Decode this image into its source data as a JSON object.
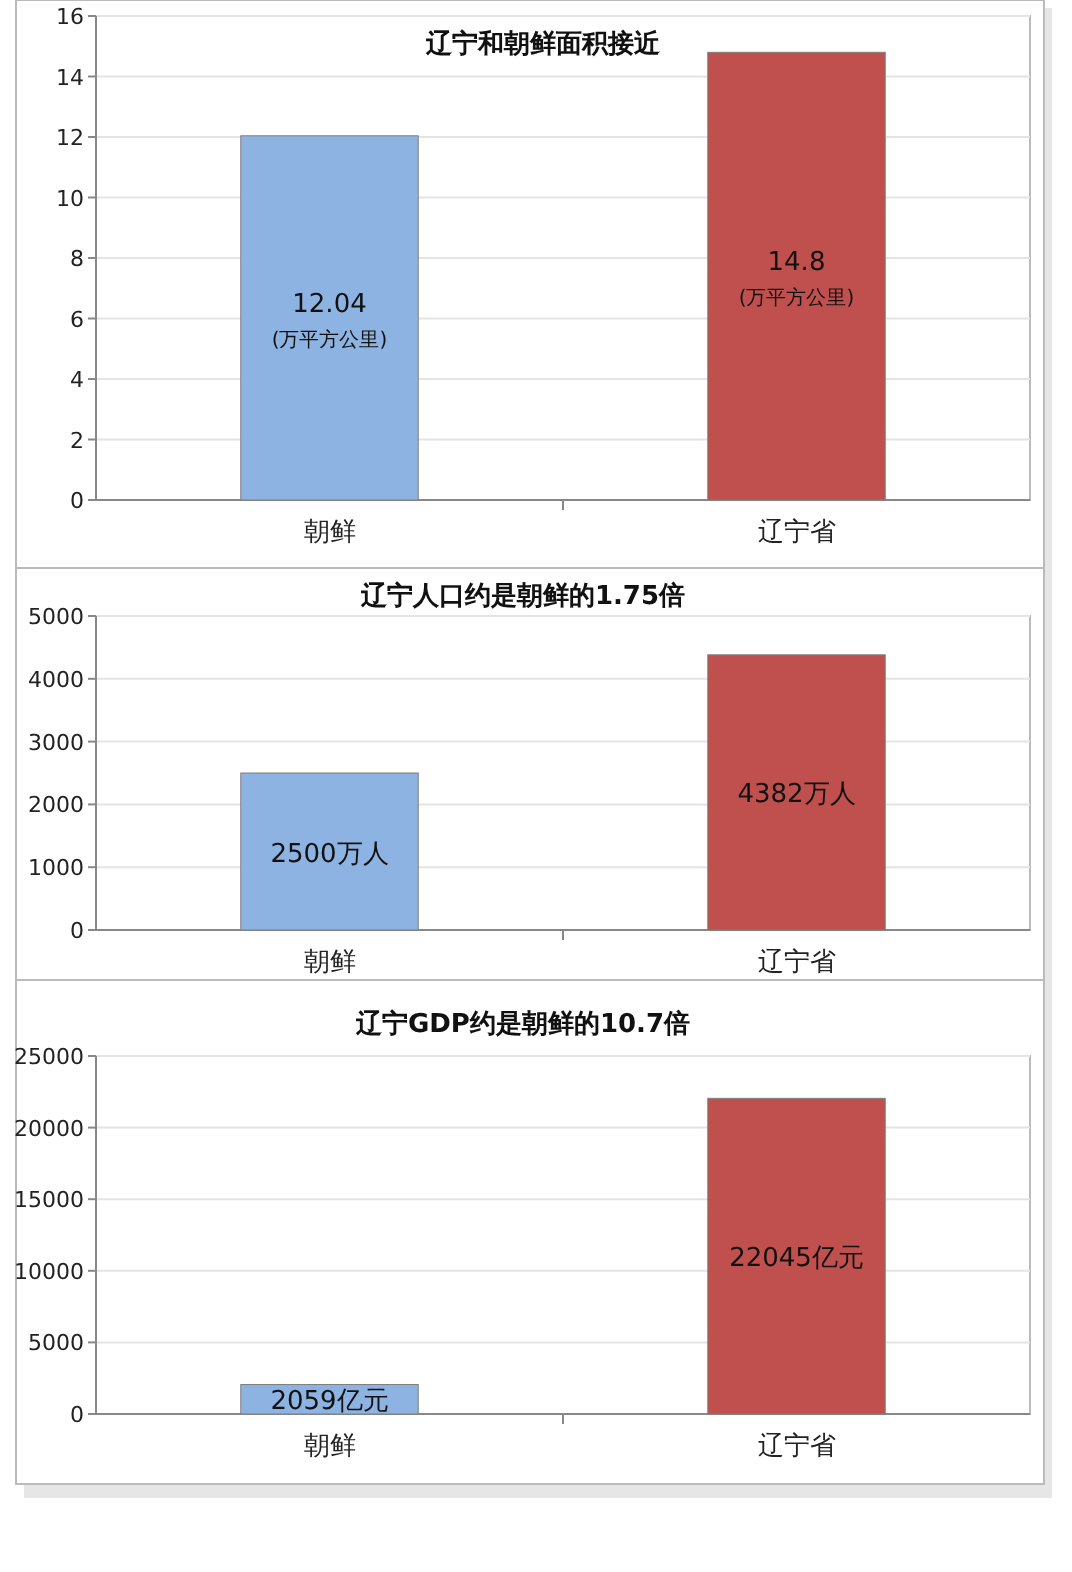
{
  "chart_data": [
    {
      "type": "bar",
      "title": "辽宁和朝鲜面积接近",
      "categories": [
        "朝鲜",
        "辽宁省"
      ],
      "colors": [
        "#8db3e2",
        "#c0504d"
      ],
      "values": [
        12.04,
        14.8
      ],
      "value_labels": [
        "12.04\n(万平方公里)",
        "14.8\n(万平方公里)"
      ],
      "ylim": [
        0,
        16
      ],
      "yticks": [
        0,
        2,
        4,
        6,
        8,
        10,
        12,
        14,
        16
      ],
      "grid": "y"
    },
    {
      "type": "bar",
      "title": "辽宁人口约是朝鲜的1.75倍",
      "categories": [
        "朝鲜",
        "辽宁省"
      ],
      "colors": [
        "#8db3e2",
        "#c0504d"
      ],
      "values": [
        2500,
        4382
      ],
      "value_labels": [
        "2500万人",
        "4382万人"
      ],
      "ylim": [
        0,
        5000
      ],
      "yticks": [
        0,
        1000,
        2000,
        3000,
        4000,
        5000
      ],
      "grid": "y"
    },
    {
      "type": "bar",
      "title": "辽宁GDP约是朝鲜的10.7倍",
      "categories": [
        "朝鲜",
        "辽宁省"
      ],
      "colors": [
        "#8db3e2",
        "#c0504d"
      ],
      "values": [
        2059,
        22045
      ],
      "value_labels": [
        "2059亿元",
        "22045亿元"
      ],
      "ylim": [
        0,
        25000
      ],
      "yticks": [
        0,
        5000,
        10000,
        15000,
        20000,
        25000
      ],
      "grid": "y"
    }
  ]
}
